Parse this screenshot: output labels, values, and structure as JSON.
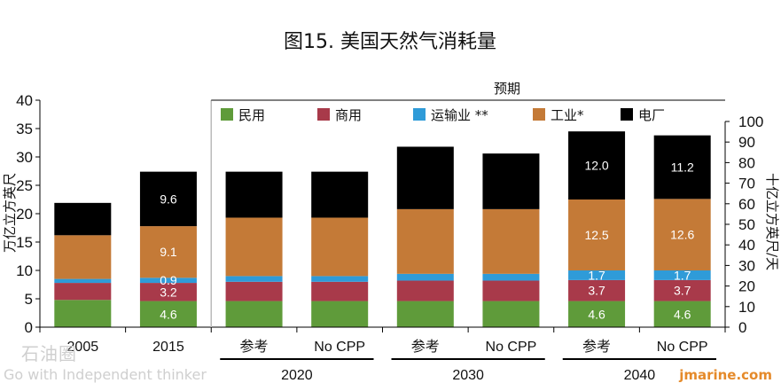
{
  "chart_data": {
    "type": "bar",
    "stacked": true,
    "title": "图15. 美国天然气消耗量",
    "forecast_label": "预期",
    "ylabel_left": "万亿立方英尺",
    "ylabel_right": "十亿立方英尺/天",
    "ylim_left": [
      0,
      40
    ],
    "yticks_left": [
      0,
      5,
      10,
      15,
      20,
      25,
      30,
      35,
      40
    ],
    "ylim_right": [
      0,
      110
    ],
    "yticks_right": [
      0,
      10,
      20,
      30,
      40,
      50,
      60,
      70,
      80,
      90,
      100
    ],
    "categories": [
      "2005",
      "2015",
      "参考",
      "No CPP",
      "参考",
      "No CPP",
      "参考",
      "No CPP"
    ],
    "groups": [
      {
        "label": "2020",
        "from": 2,
        "to": 3
      },
      {
        "label": "2030",
        "from": 4,
        "to": 5
      },
      {
        "label": "2040",
        "from": 6,
        "to": 7
      }
    ],
    "series": [
      {
        "name": "民用",
        "color": "#5f9b3a",
        "values": [
          4.8,
          4.6,
          4.6,
          4.6,
          4.6,
          4.6,
          4.6,
          4.6
        ]
      },
      {
        "name": "商用",
        "color": "#a83a4a",
        "values": [
          3.0,
          3.2,
          3.4,
          3.4,
          3.6,
          3.6,
          3.7,
          3.7
        ]
      },
      {
        "name": "运输业 **",
        "color": "#2f9bd8",
        "values": [
          0.7,
          0.9,
          1.0,
          1.0,
          1.2,
          1.2,
          1.7,
          1.7
        ]
      },
      {
        "name": "工业*",
        "color": "#c47a37",
        "values": [
          7.7,
          9.1,
          10.3,
          10.3,
          11.4,
          11.4,
          12.5,
          12.6
        ]
      },
      {
        "name": "电厂",
        "color": "#000000",
        "values": [
          5.7,
          9.6,
          8.1,
          8.1,
          11.0,
          9.8,
          12.0,
          11.2
        ]
      }
    ],
    "data_labels": [
      {
        "cat": 1,
        "series": 0,
        "text": "4.6"
      },
      {
        "cat": 1,
        "series": 1,
        "text": "3.2"
      },
      {
        "cat": 1,
        "series": 2,
        "text": "0.9"
      },
      {
        "cat": 1,
        "series": 3,
        "text": "9.1"
      },
      {
        "cat": 1,
        "series": 4,
        "text": "9.6"
      },
      {
        "cat": 6,
        "series": 0,
        "text": "4.6"
      },
      {
        "cat": 6,
        "series": 1,
        "text": "3.7"
      },
      {
        "cat": 6,
        "series": 2,
        "text": "1.7"
      },
      {
        "cat": 6,
        "series": 3,
        "text": "12.5"
      },
      {
        "cat": 6,
        "series": 4,
        "text": "12.0"
      },
      {
        "cat": 7,
        "series": 0,
        "text": "4.6"
      },
      {
        "cat": 7,
        "series": 1,
        "text": "3.7"
      },
      {
        "cat": 7,
        "series": 2,
        "text": "1.7"
      },
      {
        "cat": 7,
        "series": 3,
        "text": "12.6"
      },
      {
        "cat": 7,
        "series": 4,
        "text": "11.2"
      }
    ],
    "legend_position": "top",
    "grid": false
  },
  "watermarks": {
    "left_logo": "石油圈",
    "left_tagline": "Go with Independent thinker",
    "right_site": "jmarine.com"
  }
}
